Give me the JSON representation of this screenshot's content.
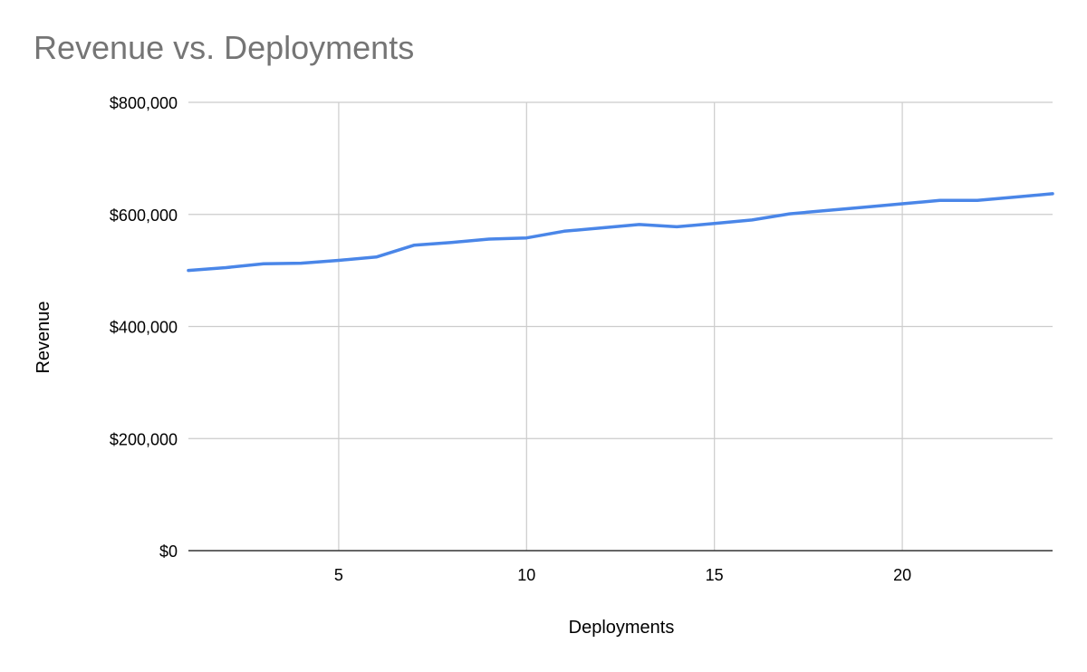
{
  "chart_data": {
    "type": "line",
    "title": "Revenue vs. Deployments",
    "xlabel": "Deployments",
    "ylabel": "Revenue",
    "xlim": [
      1,
      24
    ],
    "ylim": [
      0,
      800000
    ],
    "x_ticks": [
      5,
      10,
      15,
      20
    ],
    "y_ticks": [
      0,
      200000,
      400000,
      600000,
      800000
    ],
    "y_tick_labels": [
      "$0",
      "$200,000",
      "$400,000",
      "$600,000",
      "$800,000"
    ],
    "grid": true,
    "legend": "none",
    "series": [
      {
        "color": "#4a86e8",
        "x": [
          1,
          2,
          3,
          4,
          5,
          6,
          7,
          8,
          9,
          10,
          11,
          12,
          13,
          14,
          15,
          16,
          17,
          18,
          19,
          20,
          21,
          22,
          23,
          24
        ],
        "values": [
          500000,
          505000,
          512000,
          513000,
          518000,
          524000,
          545000,
          550000,
          556000,
          558000,
          570000,
          576000,
          582000,
          578000,
          584000,
          590000,
          601000,
          607000,
          613000,
          619000,
          625000,
          625000,
          631000,
          637000
        ]
      }
    ]
  }
}
